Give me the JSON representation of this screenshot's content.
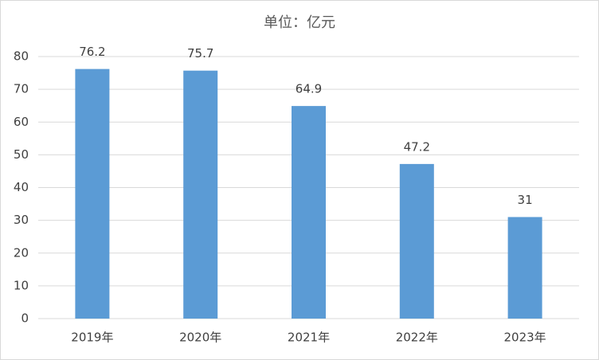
{
  "chart_data": {
    "type": "bar",
    "title": "单位：亿元",
    "categories": [
      "2019年",
      "2020年",
      "2021年",
      "2022年",
      "2023年"
    ],
    "values": [
      76.2,
      75.7,
      64.9,
      47.2,
      31
    ],
    "color": "#5b9bd5",
    "ylim": [
      0,
      80
    ],
    "yticks": [
      0,
      10,
      20,
      30,
      40,
      50,
      60,
      70,
      80
    ],
    "grid": true
  }
}
